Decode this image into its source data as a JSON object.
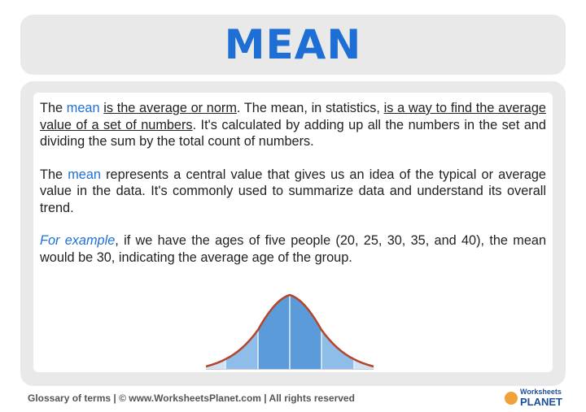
{
  "title": "MEAN",
  "paragraphs": {
    "p1": {
      "t1": "The ",
      "mean": "mean",
      "t2": " ",
      "u1": "is the average or norm",
      "t3": ". The mean, in statistics, ",
      "u2": "is a way to find the average value of a set of numbers",
      "t4": ". It's calculated by adding up all the numbers in the set and dividing the sum by the total count of numbers."
    },
    "p2": {
      "t1": "The ",
      "mean": "mean",
      "t2": " represents a central value that gives us an idea of the typical or average value in the data. It's commonly used to summarize data and understand its overall trend."
    },
    "p3": {
      "ex": "For example",
      "t1": ", if we have the ages of five people (20, 25, 30, 35, and 40), the mean would be 30, indicating the average age of the group."
    }
  },
  "colors": {
    "accent": "#1d6fd6",
    "curve": "#b5452a",
    "band_dark": "#5b9bd9",
    "band_light": "#8fbdea"
  },
  "footer": "Glossary of terms  |  © www.WorksheetsPlanet.com | All rights reserved",
  "logo": {
    "small": "Worksheets",
    "big": "PLANET"
  }
}
